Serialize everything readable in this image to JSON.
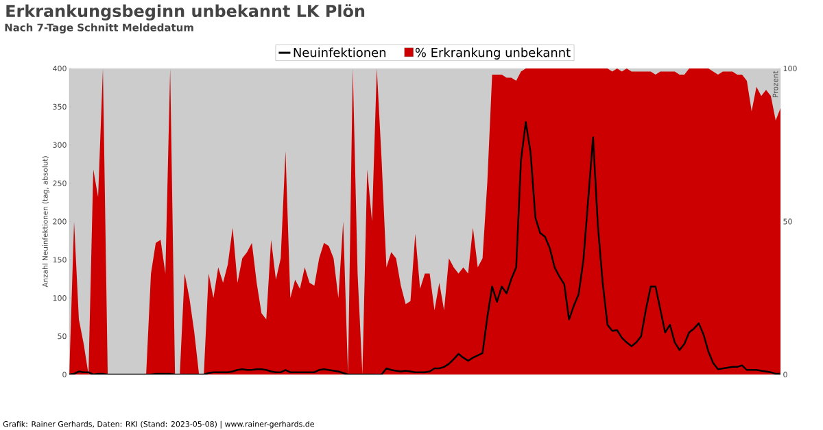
{
  "chart_data": {
    "type": "line",
    "title": "Erkrankungsbeginn unbekannt LK Plön",
    "subtitle": "Nach 7-Tage Schnitt Meldedatum",
    "ylabel": "Anzahl Neuinfektionen (tag, absolut)",
    "y2label": "Prozent",
    "annotations": [
      "Grafik: Rainer Gerhards, Daten: RKI (Stand: 2023-05-08) | www.rainer-gerhards.de"
    ],
    "categories": [
      null,
      null,
      null,
      null,
      null,
      null,
      null,
      null,
      null,
      null,
      null,
      null,
      null,
      null,
      null,
      null,
      null,
      null,
      null,
      null,
      null,
      null,
      null,
      null,
      null,
      null,
      null,
      null,
      null,
      null,
      null,
      null,
      null,
      null,
      null,
      null,
      null,
      null,
      null,
      null,
      null,
      null,
      null,
      null,
      null,
      null,
      null,
      null,
      null,
      null,
      null,
      null,
      null,
      null,
      null,
      null,
      null,
      null,
      null,
      null,
      null,
      null,
      null,
      null,
      null,
      null,
      null,
      null,
      null,
      null,
      null,
      null,
      null,
      null,
      null,
      null,
      null,
      null,
      null,
      null,
      null,
      null,
      null,
      null,
      null,
      null,
      null,
      null,
      null,
      null,
      null,
      null,
      null,
      null,
      null,
      null,
      null,
      null,
      null,
      null,
      null,
      null,
      null,
      null,
      null,
      null,
      null,
      null,
      null,
      null,
      null,
      null,
      null,
      null,
      null,
      null,
      null,
      null,
      null,
      null,
      null,
      null,
      null,
      null,
      null,
      null,
      null,
      null,
      null,
      null,
      null,
      null,
      null,
      null,
      null,
      null,
      null,
      null,
      null,
      null,
      null,
      null,
      null,
      null,
      null,
      null,
      null,
      null,
      null
    ],
    "ylim": [
      0,
      400
    ],
    "yticks": [
      0,
      50,
      100,
      150,
      200,
      250,
      300,
      350,
      400
    ],
    "y2lim": [
      0,
      100
    ],
    "y2ticks": [
      0,
      50,
      100
    ],
    "legend": "top",
    "series": [
      {
        "name": "Neuinfektionen",
        "color": "#000000",
        "values": [
          0,
          1,
          4,
          3,
          3,
          0,
          1,
          1,
          0,
          0,
          0,
          0,
          0,
          0,
          0,
          0,
          0,
          0,
          1,
          1,
          1,
          1,
          0,
          0,
          0,
          0,
          0,
          0,
          0,
          2,
          3,
          3,
          3,
          3,
          4,
          6,
          7,
          6,
          6,
          7,
          7,
          6,
          4,
          3,
          3,
          6,
          3,
          3,
          3,
          3,
          3,
          3,
          6,
          7,
          6,
          5,
          4,
          2,
          0,
          0,
          0,
          0,
          0,
          0,
          0,
          0,
          8,
          6,
          5,
          4,
          5,
          4,
          3,
          3,
          3,
          4,
          8,
          8,
          10,
          14,
          20,
          27,
          22,
          18,
          22,
          25,
          28,
          75,
          115,
          95,
          115,
          106,
          125,
          140,
          280,
          330,
          290,
          205,
          185,
          180,
          165,
          140,
          128,
          118,
          72,
          90,
          105,
          150,
          230,
          310,
          195,
          120,
          65,
          57,
          58,
          48,
          42,
          37,
          42,
          50,
          85,
          115,
          115,
          85,
          55,
          65,
          42,
          32,
          40,
          55,
          60,
          67,
          52,
          30,
          15,
          7,
          8,
          9,
          10,
          10,
          12,
          6,
          6,
          6,
          5,
          4,
          3,
          1,
          1
        ]
      },
      {
        "name": "% Erkrankung unbekannt",
        "type": "area",
        "axis": "y2",
        "color": "#cc0000",
        "values": [
          0,
          50,
          18,
          10,
          0,
          67,
          58,
          100,
          0,
          0,
          0,
          0,
          0,
          0,
          0,
          0,
          0,
          33,
          43,
          44,
          33,
          100,
          0,
          0,
          33,
          25,
          14,
          0,
          0,
          33,
          25,
          35,
          30,
          36,
          48,
          30,
          38,
          40,
          43,
          30,
          20,
          18,
          44,
          31,
          38,
          73,
          25,
          31,
          28,
          35,
          30,
          29,
          38,
          43,
          42,
          38,
          25,
          50,
          0,
          100,
          33,
          0,
          67,
          50,
          100,
          70,
          35,
          40,
          38,
          29,
          23,
          24,
          46,
          28,
          33,
          33,
          21,
          30,
          21,
          38,
          35,
          33,
          35,
          33,
          48,
          35,
          38,
          63,
          98,
          98,
          98,
          97,
          97,
          96,
          99,
          100,
          100,
          100,
          100,
          100,
          100,
          100,
          100,
          100,
          100,
          100,
          100,
          100,
          100,
          100,
          100,
          100,
          100,
          99,
          100,
          99,
          100,
          99,
          99,
          99,
          99,
          99,
          98,
          99,
          99,
          99,
          99,
          98,
          98,
          100,
          100,
          100,
          100,
          100,
          99,
          98,
          99,
          99,
          99,
          98,
          98,
          96,
          86,
          94,
          91,
          93,
          91,
          83,
          87
        ]
      }
    ]
  }
}
